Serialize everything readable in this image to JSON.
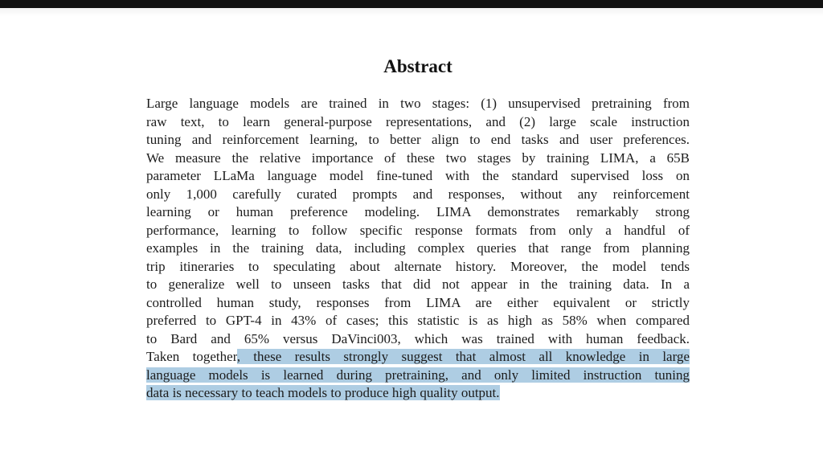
{
  "abstract": {
    "title": "Abstract",
    "colors": {
      "highlight": "#aecde3",
      "text": "#1c1c1c",
      "topbar": "#121212"
    },
    "lines": [
      {
        "text": "Large language models are trained in two stages: (1) unsupervised pretraining from"
      },
      {
        "text": "raw text, to learn general-purpose representations, and (2) large scale instruction"
      },
      {
        "text": "tuning and reinforcement learning, to better align to end tasks and user preferences."
      },
      {
        "text": "We measure the relative importance of these two stages by training LIMA, a 65B"
      },
      {
        "text": "parameter LLaMa language model fine-tuned with the standard supervised loss on"
      },
      {
        "text": "only 1,000 carefully curated prompts and responses, without any reinforcement"
      },
      {
        "text": "learning or human preference modeling. LIMA demonstrates remarkably strong"
      },
      {
        "text": "performance, learning to follow specific response formats from only a handful of"
      },
      {
        "text": "examples in the training data, including complex queries that range from planning"
      },
      {
        "text": "trip itineraries to speculating about alternate history. Moreover, the model tends"
      },
      {
        "text": "to generalize well to unseen tasks that did not appear in the training data. In a"
      },
      {
        "text": "controlled human study, responses from LIMA are either equivalent or strictly"
      },
      {
        "text": "preferred to GPT-4 in 43% of cases; this statistic is as high as 58% when compared"
      },
      {
        "text": "to Bard and 65% versus DaVinci003, which was trained with human feedback."
      },
      {
        "pre": "Taken together",
        "highlight": ", these results strongly suggest that almost all knowledge in large"
      },
      {
        "highlight": "language models is learned during pretraining, and only limited instruction tuning"
      },
      {
        "highlight": "data is necessary to teach models to produce high quality output.",
        "last": true
      }
    ]
  }
}
